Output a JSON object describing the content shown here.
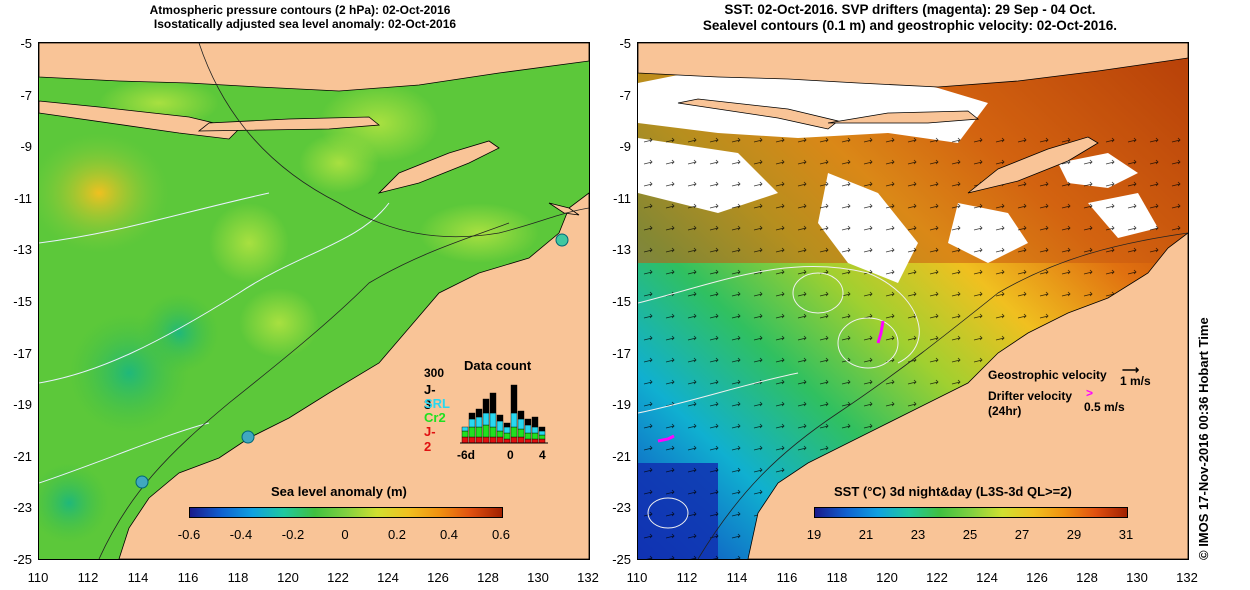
{
  "left_panel": {
    "title_line1": "Atmospheric pressure contours (2 hPa): 02-Oct-2016",
    "title_line2": "Isostatically adjusted sea level anomaly: 02-Oct-2016",
    "y_ticks": [
      "-5",
      "-7",
      "-9",
      "-11",
      "-13",
      "-15",
      "-17",
      "-19",
      "-21",
      "-23",
      "-25"
    ],
    "x_ticks": [
      "110",
      "112",
      "114",
      "116",
      "118",
      "120",
      "122",
      "124",
      "126",
      "128",
      "130",
      "132"
    ],
    "colorbar": {
      "title": "Sea level anomaly (m)",
      "ticks": [
        "-0.6",
        "-0.4",
        "-0.2",
        "0",
        "0.2",
        "0.4",
        "0.6"
      ]
    },
    "data_count": {
      "title": "Data count",
      "max_label": "300",
      "missions": [
        {
          "label": "J-3",
          "color": "#000000"
        },
        {
          "label": "SRL",
          "color": "#28d8f0"
        },
        {
          "label": "Cr2",
          "color": "#20e020"
        },
        {
          "label": "J-2",
          "color": "#e01010"
        }
      ],
      "x_labels": [
        "-6d",
        "0",
        "4"
      ]
    }
  },
  "right_panel": {
    "title_line1": "SST: 02-Oct-2016. SVP drifters (magenta): 29 Sep - 04 Oct.",
    "title_line2": "Sealevel contours (0.1 m) and geostrophic velocity: 02-Oct-2016.",
    "y_ticks": [
      "-5",
      "-7",
      "-9",
      "-11",
      "-13",
      "-15",
      "-17",
      "-19",
      "-21",
      "-23",
      "-25"
    ],
    "x_ticks": [
      "110",
      "112",
      "114",
      "116",
      "118",
      "120",
      "122",
      "124",
      "126",
      "128",
      "130",
      "132"
    ],
    "colorbar": {
      "title": "SST (°C) 3d night&day (L3S-3d QL>=2)",
      "ticks": [
        "19",
        "21",
        "23",
        "25",
        "27",
        "29",
        "31"
      ]
    },
    "legend": {
      "geo_label": "Geostrophic velocity",
      "geo_scale": "1 m/s",
      "drifter_label_1": "Drifter velocity",
      "drifter_label_2": "(24hr)",
      "drifter_scale": "0.5 m/s"
    }
  },
  "credit": "© IMOS 17-Nov-2016 00:36 Hobart Time",
  "colors": {
    "land": "#f9c497",
    "drifter": "#ff00ff",
    "white_cloud": "#ffffff"
  }
}
